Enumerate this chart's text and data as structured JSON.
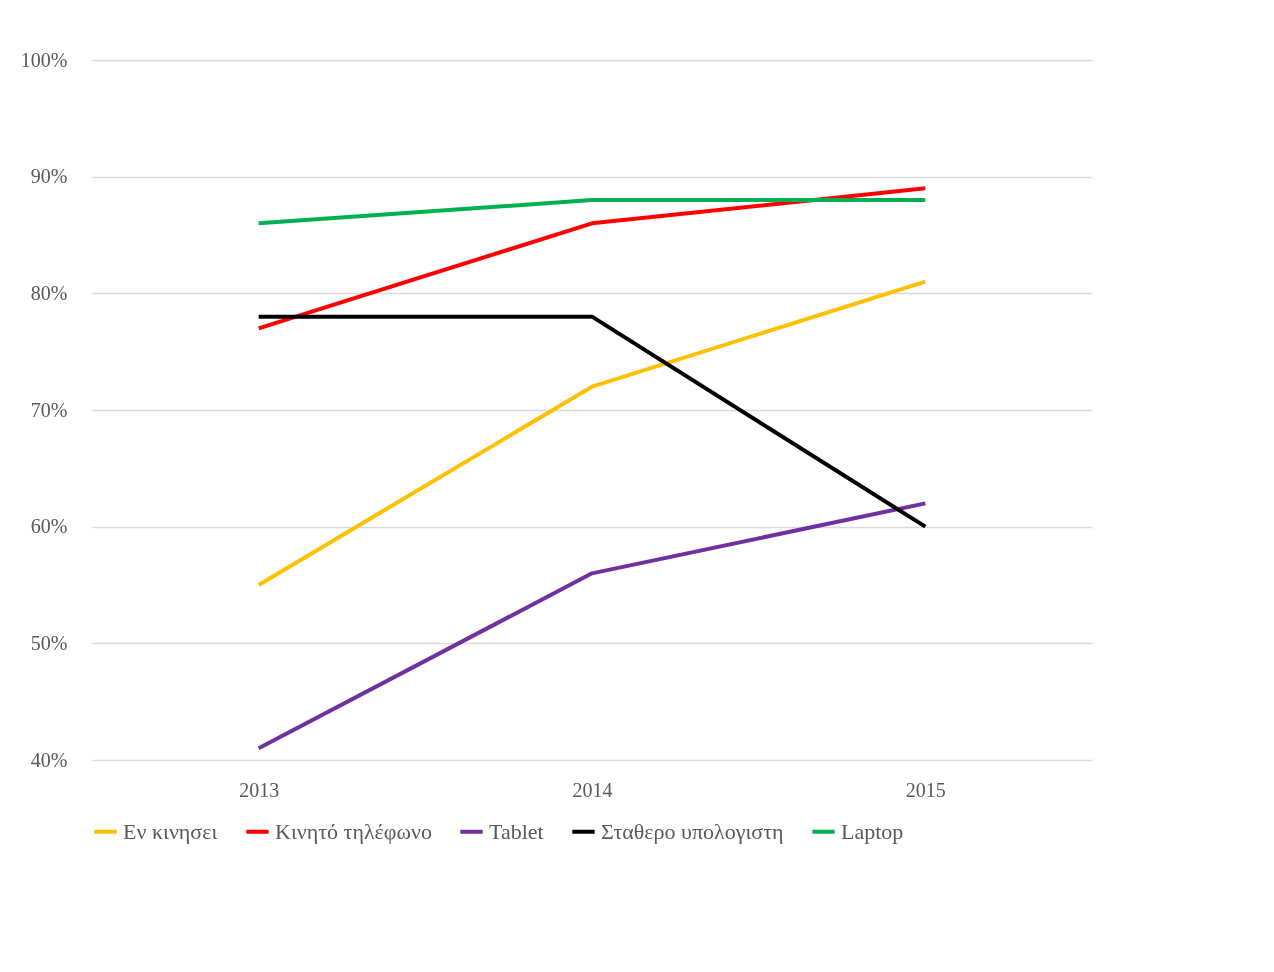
{
  "chart_data": {
    "type": "line",
    "categories": [
      "2013",
      "2014",
      "2015"
    ],
    "series": [
      {
        "name": "Εν κινησει",
        "color": "#ffc000",
        "values": [
          55,
          72,
          81
        ]
      },
      {
        "name": "Κινητό τηλέφωνο",
        "color": "#ff0000",
        "values": [
          77,
          86,
          89
        ]
      },
      {
        "name": "Tablet",
        "color": "#7030a0",
        "values": [
          41,
          56,
          62
        ]
      },
      {
        "name": "Σταθερο υπολογιστη",
        "color": "#000000",
        "values": [
          78,
          78,
          60
        ]
      },
      {
        "name": "Laptop",
        "color": "#00b050",
        "values": [
          86,
          88,
          88
        ]
      }
    ],
    "ylim": [
      40,
      100
    ],
    "yticks": [
      {
        "value": 40,
        "label": "40%"
      },
      {
        "value": 50,
        "label": "50%"
      },
      {
        "value": 60,
        "label": "60%"
      },
      {
        "value": 70,
        "label": "70%"
      },
      {
        "value": 80,
        "label": "80%"
      },
      {
        "value": 90,
        "label": "90%"
      },
      {
        "value": 100,
        "label": "100%"
      }
    ],
    "grid": "y",
    "legend": "bottom",
    "marker": "none",
    "line_style": "solid"
  }
}
